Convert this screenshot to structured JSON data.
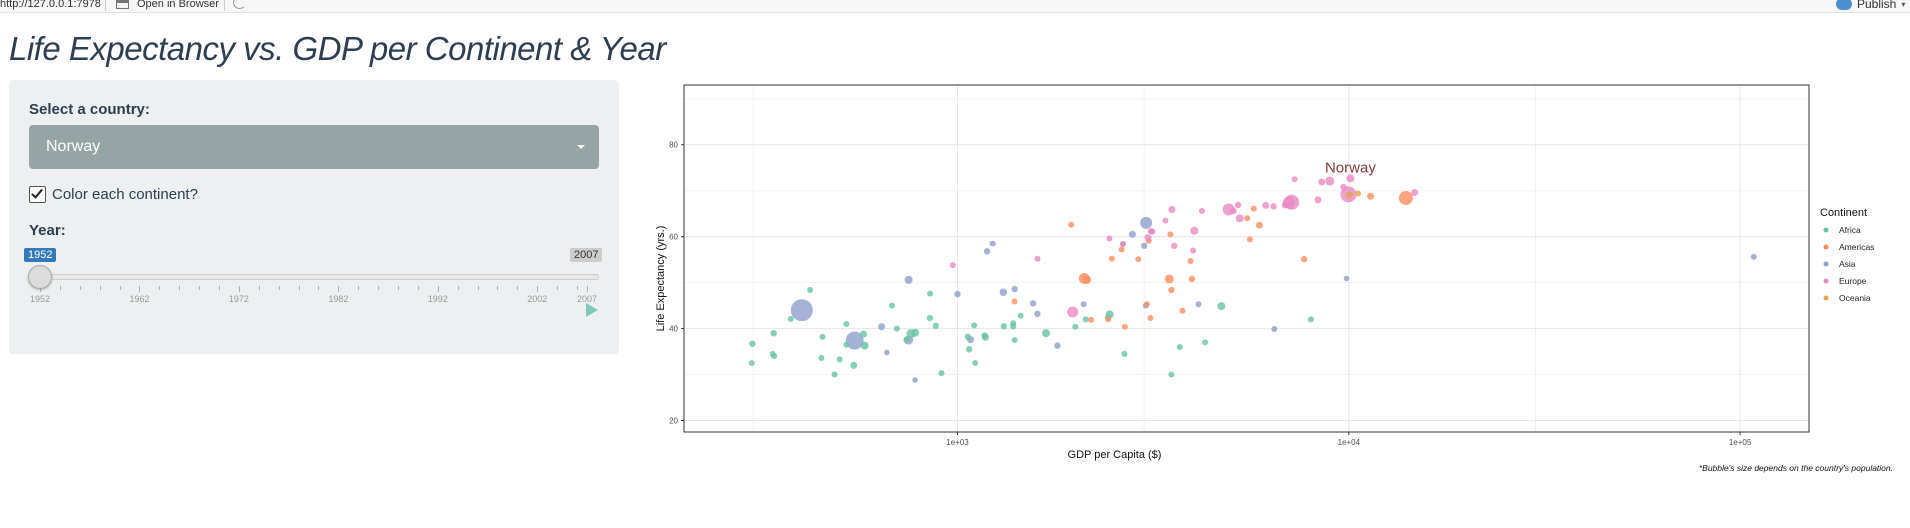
{
  "topbar": {
    "url": "http://127.0.0.1:7978",
    "open_in_browser": "Open in Browser",
    "publish": "Publish",
    "icons": [
      "open-browser-icon",
      "refresh-icon",
      "publish-icon"
    ]
  },
  "title": "Life Expectancy vs. GDP per Continent & Year",
  "controls": {
    "country_label": "Select a country:",
    "country_value": "Norway",
    "color_label": "Color each continent?",
    "color_checked": true,
    "year_label": "Year:",
    "year_min": "1952",
    "year_max": "2007",
    "year_selected": "1952",
    "year_ticks": [
      "1952",
      "1962",
      "1972",
      "1982",
      "1992",
      "2002",
      "2007"
    ]
  },
  "colors": {
    "panel_bg": "#ecf0f1",
    "select_bg": "#95a5a6",
    "badge_blue": "#337ab7",
    "title": "#2c3e50"
  },
  "chart_data": {
    "type": "scatter",
    "xlabel": "GDP per Capita ($)",
    "ylabel": "Life Expectancy (yrs.)",
    "x_scale": "log10",
    "xlim": [
      200,
      150000
    ],
    "ylim": [
      17.5,
      93
    ],
    "x_ticks": [
      {
        "v": 1000,
        "label": "1e+03"
      },
      {
        "v": 10000,
        "label": "1e+04"
      },
      {
        "v": 100000,
        "label": "1e+05"
      }
    ],
    "y_ticks": [
      20,
      40,
      60,
      80
    ],
    "grid": true,
    "legend_title": "Continent",
    "legend_position": "right",
    "annotation": "Norway",
    "highlight": {
      "x": 10095,
      "y": 72.67
    },
    "caption": "*Bubble's size depends on the country's population.",
    "series": [
      {
        "name": "Africa",
        "color": "#66c2a5"
      },
      {
        "name": "Americas",
        "color": "#fc8d62"
      },
      {
        "name": "Asia",
        "color": "#8da0cb"
      },
      {
        "name": "Europe",
        "color": "#e78ac3"
      },
      {
        "name": "Oceania",
        "color": "#e5a54b"
      }
    ],
    "points": [
      {
        "c": 2,
        "x": 779,
        "y": 28.8,
        "s": 2.8
      },
      {
        "c": 2,
        "x": 1190,
        "y": 56.8,
        "s": 3.2
      },
      {
        "c": 2,
        "x": 1230,
        "y": 58.5,
        "s": 3.0
      },
      {
        "c": 2,
        "x": 1560,
        "y": 45.5,
        "s": 3.2
      },
      {
        "c": 2,
        "x": 660,
        "y": 34.8,
        "s": 2.8
      },
      {
        "c": 2,
        "x": 640,
        "y": 40.4,
        "s": 3.5
      },
      {
        "c": 2,
        "x": 400,
        "y": 44.0,
        "s": 11.0
      },
      {
        "c": 2,
        "x": 546,
        "y": 37.4,
        "s": 9.0
      },
      {
        "c": 2,
        "x": 750,
        "y": 37.5,
        "s": 4.5
      },
      {
        "c": 2,
        "x": 3035,
        "y": 63.0,
        "s": 6.0
      },
      {
        "c": 2,
        "x": 750,
        "y": 50.6,
        "s": 4.0
      },
      {
        "c": 2,
        "x": 3030,
        "y": 45.0,
        "s": 3.0
      },
      {
        "c": 2,
        "x": 1080,
        "y": 37.6,
        "s": 3.5
      },
      {
        "c": 2,
        "x": 2100,
        "y": 45.3,
        "s": 3.0
      },
      {
        "c": 2,
        "x": 1400,
        "y": 48.6,
        "s": 3.2
      },
      {
        "c": 2,
        "x": 1600,
        "y": 43.2,
        "s": 3.2
      },
      {
        "c": 2,
        "x": 3000,
        "y": 58.0,
        "s": 3.2
      },
      {
        "c": 2,
        "x": 1800,
        "y": 36.3,
        "s": 3.2
      },
      {
        "c": 2,
        "x": 6450,
        "y": 39.9,
        "s": 3.0
      },
      {
        "c": 2,
        "x": 9867,
        "y": 50.9,
        "s": 2.8
      },
      {
        "c": 2,
        "x": 108382,
        "y": 55.6,
        "s": 3.0
      },
      {
        "c": 2,
        "x": 4130,
        "y": 45.3,
        "s": 3.0
      },
      {
        "c": 2,
        "x": 2800,
        "y": 60.5,
        "s": 3.5
      },
      {
        "c": 2,
        "x": 1310,
        "y": 47.9,
        "s": 3.8
      },
      {
        "c": 2,
        "x": 1000,
        "y": 47.5,
        "s": 3.2
      },
      {
        "c": 0,
        "x": 2449,
        "y": 43.1,
        "s": 4.0
      },
      {
        "c": 0,
        "x": 3521,
        "y": 30.0,
        "s": 3.0
      },
      {
        "c": 0,
        "x": 1063,
        "y": 38.2,
        "s": 3.2
      },
      {
        "c": 0,
        "x": 851,
        "y": 47.6,
        "s": 3.0
      },
      {
        "c": 0,
        "x": 543,
        "y": 32.0,
        "s": 3.5
      },
      {
        "c": 0,
        "x": 339,
        "y": 39.0,
        "s": 3.2
      },
      {
        "c": 0,
        "x": 1173,
        "y": 38.5,
        "s": 3.2
      },
      {
        "c": 0,
        "x": 1071,
        "y": 35.5,
        "s": 3.2
      },
      {
        "c": 0,
        "x": 1179,
        "y": 38.1,
        "s": 3.5
      },
      {
        "c": 0,
        "x": 1103,
        "y": 40.7,
        "s": 3.0
      },
      {
        "c": 0,
        "x": 780,
        "y": 39.1,
        "s": 4.0
      },
      {
        "c": 0,
        "x": 2125,
        "y": 42.0,
        "s": 3.0
      },
      {
        "c": 0,
        "x": 1388,
        "y": 40.5,
        "s": 3.2
      },
      {
        "c": 0,
        "x": 2670,
        "y": 34.5,
        "s": 3.0
      },
      {
        "c": 0,
        "x": 375,
        "y": 42.1,
        "s": 3.0
      },
      {
        "c": 0,
        "x": 4293,
        "y": 37.0,
        "s": 3.0
      },
      {
        "c": 0,
        "x": 485,
        "y": 30.0,
        "s": 3.0
      },
      {
        "c": 0,
        "x": 2424,
        "y": 42.4,
        "s": 3.0
      },
      {
        "c": 0,
        "x": 1683,
        "y": 39.0,
        "s": 4.0
      },
      {
        "c": 0,
        "x": 452,
        "y": 38.2,
        "s": 3.0
      },
      {
        "c": 0,
        "x": 500,
        "y": 33.3,
        "s": 3.0
      },
      {
        "c": 0,
        "x": 1388,
        "y": 41.2,
        "s": 3.0
      },
      {
        "c": 0,
        "x": 1313,
        "y": 40.5,
        "s": 3.2
      },
      {
        "c": 0,
        "x": 2648,
        "y": 58.4,
        "s": 3.0
      },
      {
        "c": 0,
        "x": 299,
        "y": 36.7,
        "s": 3.2
      },
      {
        "c": 0,
        "x": 579,
        "y": 36.3,
        "s": 4.0
      },
      {
        "c": 0,
        "x": 2000,
        "y": 40.4,
        "s": 3.0
      },
      {
        "c": 0,
        "x": 8000,
        "y": 42.0,
        "s": 3.0
      },
      {
        "c": 0,
        "x": 520,
        "y": 41.0,
        "s": 3.0
      },
      {
        "c": 0,
        "x": 1110,
        "y": 32.5,
        "s": 3.0
      },
      {
        "c": 0,
        "x": 449,
        "y": 33.6,
        "s": 3.0
      },
      {
        "c": 0,
        "x": 1450,
        "y": 42.8,
        "s": 3.0
      },
      {
        "c": 0,
        "x": 740,
        "y": 37.6,
        "s": 3.0
      },
      {
        "c": 0,
        "x": 880,
        "y": 40.6,
        "s": 3.2
      },
      {
        "c": 0,
        "x": 760,
        "y": 38.9,
        "s": 4.5
      },
      {
        "c": 0,
        "x": 298,
        "y": 32.5,
        "s": 3.0
      },
      {
        "c": 0,
        "x": 420,
        "y": 48.4,
        "s": 3.0
      },
      {
        "c": 0,
        "x": 4725,
        "y": 44.9,
        "s": 4.0
      },
      {
        "c": 0,
        "x": 3700,
        "y": 36.0,
        "s": 3.0
      },
      {
        "c": 0,
        "x": 575,
        "y": 38.8,
        "s": 3.5
      },
      {
        "c": 0,
        "x": 337,
        "y": 34.5,
        "s": 3.0
      },
      {
        "c": 0,
        "x": 850,
        "y": 42.3,
        "s": 3.2
      },
      {
        "c": 0,
        "x": 910,
        "y": 30.3,
        "s": 3.0
      },
      {
        "c": 0,
        "x": 340,
        "y": 34.0,
        "s": 3.0
      },
      {
        "c": 0,
        "x": 680,
        "y": 45.0,
        "s": 3.0
      },
      {
        "c": 0,
        "x": 700,
        "y": 40.0,
        "s": 3.0
      },
      {
        "c": 0,
        "x": 1400,
        "y": 37.5,
        "s": 3.0
      },
      {
        "c": 0,
        "x": 520,
        "y": 36.5,
        "s": 3.0
      },
      {
        "c": 1,
        "x": 5911,
        "y": 62.5,
        "s": 3.5
      },
      {
        "c": 1,
        "x": 2677,
        "y": 40.4,
        "s": 3.0
      },
      {
        "c": 1,
        "x": 2109,
        "y": 50.9,
        "s": 5.5
      },
      {
        "c": 1,
        "x": 11367,
        "y": 68.8,
        "s": 3.5
      },
      {
        "c": 1,
        "x": 3940,
        "y": 54.7,
        "s": 3.0
      },
      {
        "c": 1,
        "x": 2144,
        "y": 50.6,
        "s": 4.0
      },
      {
        "c": 1,
        "x": 2627,
        "y": 57.2,
        "s": 3.0
      },
      {
        "c": 1,
        "x": 5587,
        "y": 59.4,
        "s": 3.0
      },
      {
        "c": 1,
        "x": 1398,
        "y": 45.9,
        "s": 3.0
      },
      {
        "c": 1,
        "x": 3522,
        "y": 48.4,
        "s": 3.2
      },
      {
        "c": 1,
        "x": 3048,
        "y": 45.3,
        "s": 3.0
      },
      {
        "c": 1,
        "x": 2428,
        "y": 42.0,
        "s": 3.0
      },
      {
        "c": 1,
        "x": 2898,
        "y": 55.1,
        "s": 3.0
      },
      {
        "c": 1,
        "x": 2194,
        "y": 41.9,
        "s": 3.0
      },
      {
        "c": 1,
        "x": 3972,
        "y": 50.8,
        "s": 3.2
      },
      {
        "c": 1,
        "x": 3478,
        "y": 50.8,
        "s": 4.5
      },
      {
        "c": 1,
        "x": 3112,
        "y": 42.3,
        "s": 3.0
      },
      {
        "c": 1,
        "x": 2480,
        "y": 55.2,
        "s": 3.0
      },
      {
        "c": 1,
        "x": 1952,
        "y": 62.6,
        "s": 3.0
      },
      {
        "c": 1,
        "x": 3758,
        "y": 43.9,
        "s": 3.0
      },
      {
        "c": 1,
        "x": 13990,
        "y": 68.4,
        "s": 7.0
      },
      {
        "c": 1,
        "x": 5716,
        "y": 66.1,
        "s": 3.0
      },
      {
        "c": 1,
        "x": 7690,
        "y": 55.1,
        "s": 3.2
      },
      {
        "c": 1,
        "x": 3081,
        "y": 59.1,
        "s": 3.0
      },
      {
        "c": 1,
        "x": 5500,
        "y": 64.0,
        "s": 3.0
      },
      {
        "c": 1,
        "x": 3500,
        "y": 60.5,
        "s": 3.0
      },
      {
        "c": 3,
        "x": 1601,
        "y": 55.2,
        "s": 3.0
      },
      {
        "c": 3,
        "x": 6137,
        "y": 66.8,
        "s": 3.5
      },
      {
        "c": 3,
        "x": 8343,
        "y": 68.0,
        "s": 3.5
      },
      {
        "c": 3,
        "x": 973,
        "y": 53.8,
        "s": 3.0
      },
      {
        "c": 3,
        "x": 2444,
        "y": 59.6,
        "s": 3.0
      },
      {
        "c": 3,
        "x": 3119,
        "y": 61.2,
        "s": 3.0
      },
      {
        "c": 3,
        "x": 6876,
        "y": 66.9,
        "s": 3.5
      },
      {
        "c": 3,
        "x": 9692,
        "y": 70.8,
        "s": 3.2
      },
      {
        "c": 3,
        "x": 6424,
        "y": 66.6,
        "s": 3.2
      },
      {
        "c": 3,
        "x": 7030,
        "y": 67.4,
        "s": 6.0
      },
      {
        "c": 3,
        "x": 7144,
        "y": 67.5,
        "s": 7.5
      },
      {
        "c": 3,
        "x": 3531,
        "y": 65.9,
        "s": 3.5
      },
      {
        "c": 3,
        "x": 5263,
        "y": 64.0,
        "s": 4.0
      },
      {
        "c": 3,
        "x": 7268,
        "y": 72.5,
        "s": 3.0
      },
      {
        "c": 3,
        "x": 5211,
        "y": 66.9,
        "s": 3.2
      },
      {
        "c": 3,
        "x": 4931,
        "y": 65.9,
        "s": 6.0
      },
      {
        "c": 3,
        "x": 2648,
        "y": 58.4,
        "s": 3.0
      },
      {
        "c": 3,
        "x": 8941,
        "y": 72.1,
        "s": 4.5
      },
      {
        "c": 3,
        "x": 10095,
        "y": 72.7,
        "s": 4.0
      },
      {
        "c": 3,
        "x": 4029,
        "y": 61.3,
        "s": 4.0
      },
      {
        "c": 3,
        "x": 3068,
        "y": 59.8,
        "s": 3.5
      },
      {
        "c": 3,
        "x": 3145,
        "y": 61.1,
        "s": 3.2
      },
      {
        "c": 3,
        "x": 3581,
        "y": 58.0,
        "s": 3.2
      },
      {
        "c": 3,
        "x": 5074,
        "y": 65.6,
        "s": 3.2
      },
      {
        "c": 3,
        "x": 4215,
        "y": 65.6,
        "s": 3.0
      },
      {
        "c": 3,
        "x": 8527,
        "y": 71.9,
        "s": 3.5
      },
      {
        "c": 3,
        "x": 14734,
        "y": 69.6,
        "s": 3.5
      },
      {
        "c": 3,
        "x": 1969,
        "y": 43.6,
        "s": 5.5
      },
      {
        "c": 3,
        "x": 9980,
        "y": 69.2,
        "s": 8.0
      },
      {
        "c": 3,
        "x": 3400,
        "y": 63.5,
        "s": 3.0
      },
      {
        "c": 3,
        "x": 4000,
        "y": 57.0,
        "s": 3.0
      },
      {
        "c": 4,
        "x": 10040,
        "y": 69.1,
        "s": 3.5
      },
      {
        "c": 4,
        "x": 10557,
        "y": 69.4,
        "s": 3.0
      }
    ]
  }
}
